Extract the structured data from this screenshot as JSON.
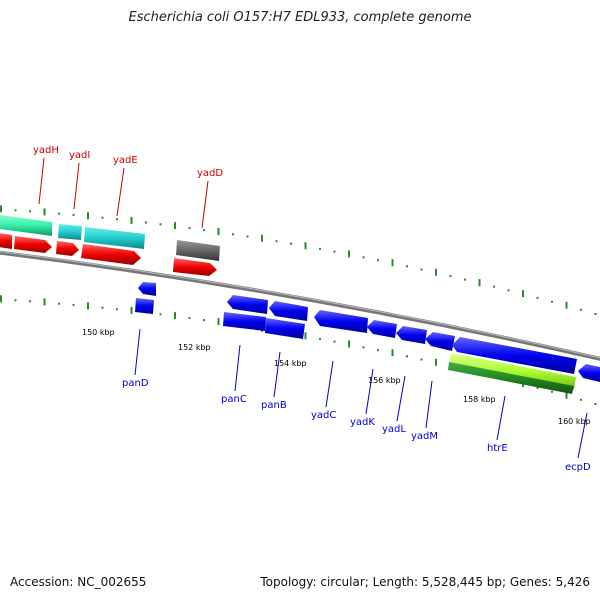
{
  "header": {
    "title": "Escherichia coli O157:H7 EDL933, complete genome"
  },
  "footer": {
    "accession": "Accession: NC_002655",
    "topology": "Topology: circular; Length: 5,528,445 bp; Genes: 5,426"
  },
  "colors": {
    "forward_label": "#cc0000",
    "reverse_label": "#0000cc",
    "backbone": "#888888",
    "tick": "#2a8a2a",
    "forward_cds": "#ff0000",
    "reverse_cds": "#0000ee",
    "cyan_feature": "#22cccc",
    "teal_feature": "#33eeaa",
    "gray_feature": "#666666",
    "lime_feature": "#aaff33",
    "green_feature": "#228822"
  },
  "scale_labels": [
    "150 kbp",
    "152 kbp",
    "154 kbp",
    "156 kbp",
    "158 kbp",
    "160 kbp"
  ],
  "forward_genes": [
    "yadH",
    "yadI",
    "yadE",
    "yadD"
  ],
  "reverse_genes": [
    "panD",
    "panC",
    "panB",
    "yadC",
    "yadK",
    "yadL",
    "yadM",
    "htrE",
    "ecpD"
  ]
}
